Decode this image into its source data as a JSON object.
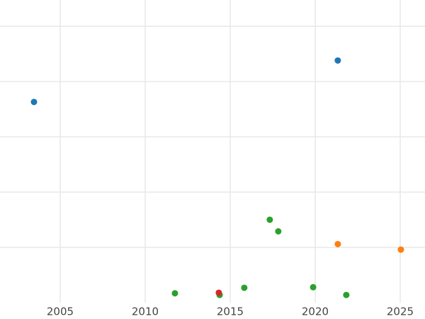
{
  "chart_data": {
    "type": "scatter",
    "xlim": [
      2001.46,
      2026.46
    ],
    "xticks": [
      2005,
      2010,
      2015,
      2020,
      2025
    ],
    "ylim": [
      0,
      5.474
    ],
    "yticks": [
      1,
      2,
      3,
      4,
      5
    ],
    "grid": true,
    "series": [
      {
        "color": "#1f77b4",
        "x": [
          2003.46,
          2021.33
        ],
        "values": [
          3.63,
          4.38
        ]
      },
      {
        "color": "#ff7f0e",
        "x": [
          2021.33,
          2025.04
        ],
        "values": [
          1.06,
          0.96
        ]
      },
      {
        "color": "#2ca02c",
        "x": [
          2011.75,
          2014.38,
          2015.83,
          2017.33,
          2017.83,
          2019.88,
          2021.83
        ],
        "values": [
          0.17,
          0.14,
          0.27,
          1.5,
          1.29,
          0.28,
          0.14
        ]
      },
      {
        "color": "#d62728",
        "x": [
          2014.33
        ],
        "values": [
          0.18
        ]
      }
    ]
  }
}
